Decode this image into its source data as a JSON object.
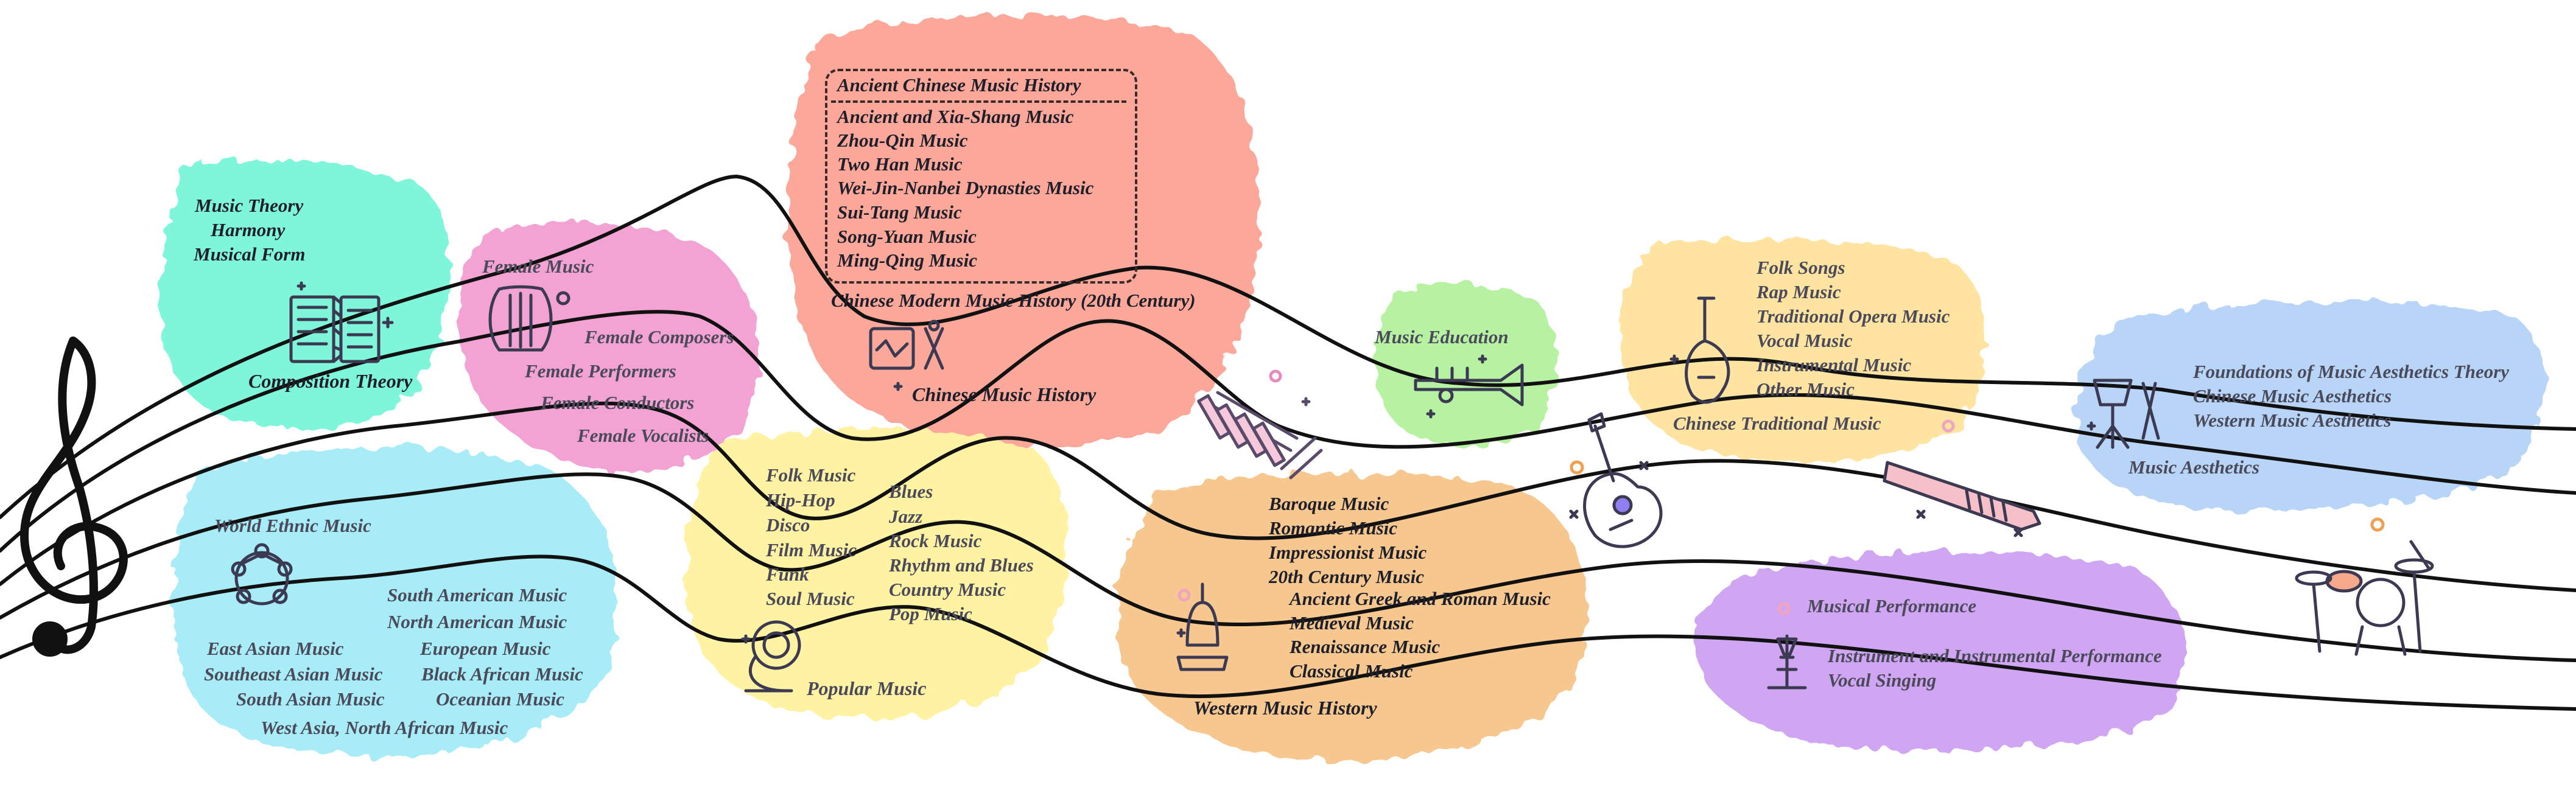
{
  "colors": {
    "music_theory": "#7ff5da",
    "female_music": "#f2a3d3",
    "chinese_music_history": "#fba79a",
    "world_ethnic_music": "#a8ecf7",
    "popular_music": "#fff3a3",
    "music_education": "#b6f2a2",
    "western_music_history": "#f6c88f",
    "chinese_traditional_music": "#ffe4a1",
    "music_aesthetics": "#b8d4f7",
    "musical_performance": "#d0a6f3",
    "staff_line": "#111111",
    "icon_stroke": "#3b3a52"
  },
  "icons": [
    "treble-clef-icon",
    "accordion-icon",
    "lyre-icon",
    "drum-icon",
    "world-people-icon",
    "french-horn-icon",
    "xylophone-icon",
    "trumpet-icon",
    "handbell-icon",
    "electric-guitar-icon",
    "pipa-icon",
    "keytar-icon",
    "music-stand-icon",
    "drum-kit-icon",
    "singer-microphone-icon"
  ],
  "music_theory": {
    "items": [
      "Music Theory",
      "Harmony",
      "Musical Form"
    ],
    "category": "Composition Theory"
  },
  "female_music": {
    "category": "Female Music",
    "items": [
      "Female Composers",
      "Female Performers",
      "Female Conductors",
      "Female Vocalists"
    ]
  },
  "chinese_music_history": {
    "ancient_title": "Ancient Chinese Music History",
    "ancient_items": [
      "Ancient and Xia-Shang Music",
      "Zhou-Qin Music",
      "Two Han Music",
      "Wei-Jin-Nanbei Dynasties Music",
      "Sui-Tang Music",
      "Song-Yuan Music",
      "Ming-Qing Music"
    ],
    "modern": "Chinese Modern Music History (20th Century)",
    "category": "Chinese Music History"
  },
  "world_ethnic_music": {
    "category": "World Ethnic Music",
    "items": [
      "South American Music",
      "North American Music",
      "East Asian Music",
      "European Music",
      "Southeast Asian Music",
      "Black African Music",
      "South Asian Music",
      "Oceanian Music",
      "West Asia, North African Music"
    ]
  },
  "popular_music": {
    "col1": [
      "Folk Music",
      "Hip-Hop",
      "Disco",
      "Film Music",
      "Funk",
      "Soul Music"
    ],
    "col2": [
      "Blues",
      "Jazz",
      "Rock Music",
      "Rhythm and Blues",
      "Country Music",
      "Pop Music"
    ],
    "category": "Popular Music"
  },
  "music_education": {
    "category": "Music Education"
  },
  "western_music_history": {
    "items": [
      "Baroque Music",
      "Romantic Music",
      "Impressionist Music",
      "20th Century Music",
      "Ancient Greek and Roman Music",
      "Medieval Music",
      "Renaissance Music",
      "Classical Music"
    ],
    "category": "Western Music History"
  },
  "chinese_traditional_music": {
    "items": [
      "Folk Songs",
      "Rap Music",
      "Traditional Opera Music",
      "Vocal Music",
      "Instrumental Music",
      "Other Music"
    ],
    "category": "Chinese Traditional Music"
  },
  "music_aesthetics": {
    "items": [
      "Foundations of Music Aesthetics Theory",
      "Chinese Music Aesthetics",
      "Western Music Aesthetics"
    ],
    "category": "Music Aesthetics"
  },
  "musical_performance": {
    "category": "Musical Performance",
    "items": [
      "Instrument and Instrumental Performance",
      "Vocal Singing"
    ]
  }
}
